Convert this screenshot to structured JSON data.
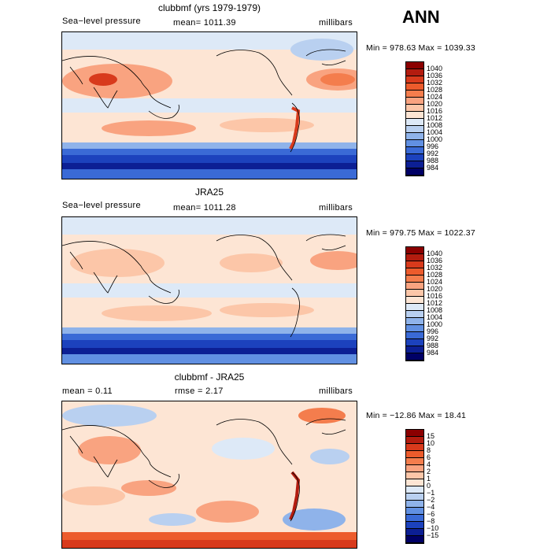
{
  "season": "ANN",
  "panels": [
    {
      "title": "clubbmf (yrs 1979-1979)",
      "left": "Sea−level pressure",
      "center": "mean= 1011.39",
      "right": "millibars",
      "minmax": "Min = 978.63 Max = 1039.33",
      "levels": [
        "1040",
        "1036",
        "1032",
        "1028",
        "1024",
        "1020",
        "1016",
        "1012",
        "1008",
        "1004",
        "1000",
        "996",
        "992",
        "988",
        "984"
      ],
      "colors": [
        "#8b0000",
        "#b31c0f",
        "#d83a1c",
        "#ec5b2c",
        "#f47d4d",
        "#f9a380",
        "#fcc6a8",
        "#fde5d4",
        "#dde9f7",
        "#b9d0f0",
        "#8fb3ea",
        "#6190e2",
        "#3a6ad6",
        "#1c42bd",
        "#0c1f94",
        "#000066"
      ],
      "map_background_style": "model"
    },
    {
      "title": "JRA25",
      "left": "Sea−level pressure",
      "center": "mean= 1011.28",
      "right": "millibars",
      "minmax": "Min = 979.75 Max = 1022.37",
      "levels": [
        "1040",
        "1036",
        "1032",
        "1028",
        "1024",
        "1020",
        "1016",
        "1012",
        "1008",
        "1004",
        "1000",
        "996",
        "992",
        "988",
        "984"
      ],
      "colors": [
        "#8b0000",
        "#b31c0f",
        "#d83a1c",
        "#ec5b2c",
        "#f47d4d",
        "#f9a380",
        "#fcc6a8",
        "#fde5d4",
        "#dde9f7",
        "#b9d0f0",
        "#8fb3ea",
        "#6190e2",
        "#3a6ad6",
        "#1c42bd",
        "#0c1f94",
        "#000066"
      ],
      "map_background_style": "obs"
    },
    {
      "title": "clubbmf - JRA25",
      "left": "mean =    0.11",
      "center": "rmse =    2.17",
      "right": "millibars",
      "minmax": "Min = −12.86 Max =  18.41",
      "levels": [
        "15",
        "10",
        "8",
        "6",
        "4",
        "2",
        "1",
        "0",
        "−1",
        "−2",
        "−4",
        "−6",
        "−8",
        "−10",
        "−15"
      ],
      "colors": [
        "#8b0000",
        "#b31c0f",
        "#d83a1c",
        "#ec5b2c",
        "#f47d4d",
        "#f9a380",
        "#fcc6a8",
        "#fde5d4",
        "#dde9f7",
        "#b9d0f0",
        "#8fb3ea",
        "#6190e2",
        "#3a6ad6",
        "#1c42bd",
        "#0c1f94",
        "#000066"
      ],
      "map_background_style": "diff"
    }
  ]
}
